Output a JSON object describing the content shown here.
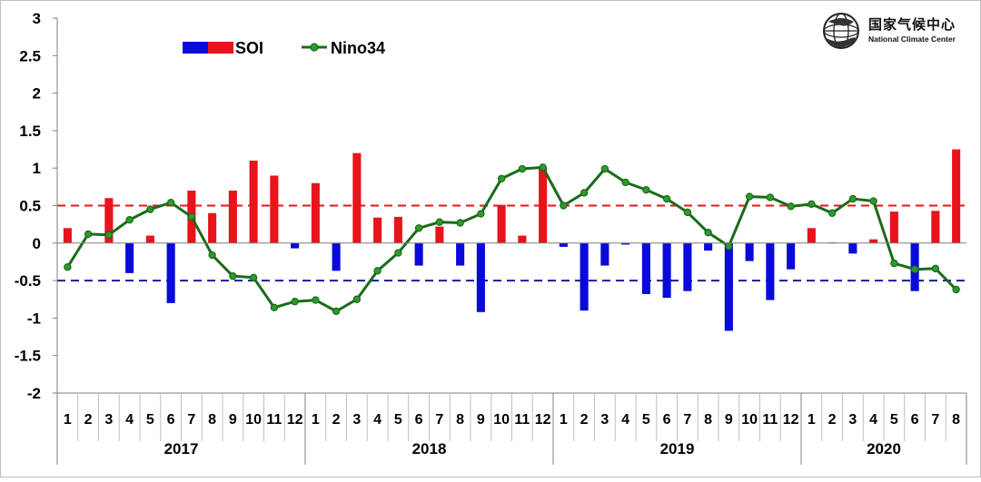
{
  "logo": {
    "title_cn": "国家气候中心",
    "title_en": "National Climate Center"
  },
  "legend": {
    "soi_label": "SOI",
    "nino_label": "Nino34"
  },
  "colors": {
    "positive_bar": "#e8141b",
    "negative_bar": "#0a0ad8",
    "nino_line": "#1a6b1a",
    "upper_threshold": "#e8141b",
    "lower_threshold": "#1a1a9a"
  },
  "chart_data": {
    "type": "bar+line",
    "title": "",
    "xlabel": "",
    "ylabel": "",
    "ylim": [
      -2,
      3
    ],
    "yticks": [
      "3",
      "2.5",
      "2",
      "1.5",
      "1",
      "0.5",
      "0",
      "-0.5",
      "-1",
      "-1.5",
      "-2"
    ],
    "thresholds": [
      0.5,
      -0.5
    ],
    "grid": false,
    "legend_position": "top-left",
    "years": [
      {
        "label": "2017",
        "months": 12
      },
      {
        "label": "2018",
        "months": 12
      },
      {
        "label": "2019",
        "months": 12
      },
      {
        "label": "2020",
        "months": 8
      }
    ],
    "months": [
      "1",
      "2",
      "3",
      "4",
      "5",
      "6",
      "7",
      "8",
      "9",
      "10",
      "11",
      "12",
      "1",
      "2",
      "3",
      "4",
      "5",
      "6",
      "7",
      "8",
      "9",
      "10",
      "11",
      "12",
      "1",
      "2",
      "3",
      "4",
      "5",
      "6",
      "7",
      "8",
      "9",
      "10",
      "11",
      "12",
      "1",
      "2",
      "3",
      "4",
      "5",
      "6",
      "7",
      "8"
    ],
    "series": [
      {
        "name": "SOI",
        "type": "bar",
        "values": [
          0.2,
          0,
          0.6,
          -0.4,
          0.1,
          -0.8,
          0.7,
          0.4,
          0.7,
          1.1,
          0.9,
          -0.07,
          0.8,
          -0.37,
          1.2,
          0.34,
          0.35,
          -0.3,
          0.22,
          -0.3,
          -0.92,
          0.51,
          0.1,
          1.01,
          -0.05,
          -0.9,
          -0.3,
          -0.02,
          -0.68,
          -0.73,
          -0.64,
          -0.1,
          -1.17,
          -0.24,
          -0.76,
          -0.35,
          0.2,
          0.01,
          -0.14,
          0.05,
          0.42,
          -0.64,
          0.43,
          1.25
        ]
      },
      {
        "name": "Nino34",
        "type": "line",
        "values": [
          -0.32,
          0.12,
          0.11,
          0.31,
          0.45,
          0.54,
          0.35,
          -0.16,
          -0.44,
          -0.46,
          -0.86,
          -0.78,
          -0.76,
          -0.91,
          -0.75,
          -0.37,
          -0.13,
          0.2,
          0.28,
          0.27,
          0.39,
          0.86,
          0.99,
          1.01,
          0.5,
          0.67,
          0.99,
          0.81,
          0.71,
          0.59,
          0.41,
          0.14,
          -0.04,
          0.62,
          0.61,
          0.49,
          0.52,
          0.4,
          0.59,
          0.56,
          -0.27,
          -0.35,
          -0.34,
          -0.62
        ]
      }
    ]
  }
}
